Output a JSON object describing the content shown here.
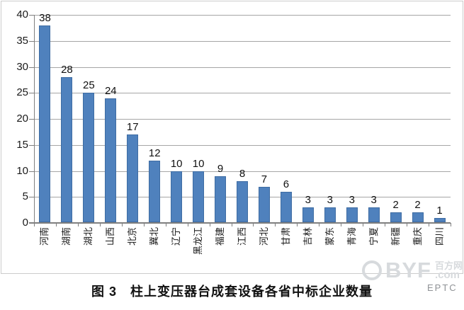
{
  "chart_data": {
    "type": "bar",
    "title": "图 3　柱上变压器台成套设备各省中标企业数量",
    "categories": [
      "河南",
      "湖南",
      "湖北",
      "山西",
      "北京",
      "冀北",
      "辽宁",
      "黑龙江",
      "福建",
      "江西",
      "河北",
      "甘肃",
      "吉林",
      "蒙东",
      "青海",
      "宁夏",
      "新疆",
      "重庆",
      "四川"
    ],
    "values": [
      38,
      28,
      25,
      24,
      17,
      12,
      10,
      10,
      9,
      8,
      7,
      6,
      3,
      3,
      3,
      3,
      2,
      2,
      1
    ],
    "xlabel": "",
    "ylabel": "",
    "ylim": [
      0,
      40
    ],
    "yticks": [
      0,
      5,
      10,
      15,
      20,
      25,
      30,
      35,
      40
    ],
    "grid": true,
    "legend": "none",
    "data_labels": true,
    "bar_color": "#4f81bd",
    "bar_border_color": "#3e6ca3",
    "gridline_color": "#a6a6a6",
    "axis_color": "#7f7f7f"
  },
  "caption": {
    "text": "图 3　柱上变压器台成套设备各省中标企业数量"
  },
  "watermark": {
    "brand": "BYF",
    "site": "百方网",
    "domain": ".com",
    "tag": "EPTC"
  }
}
